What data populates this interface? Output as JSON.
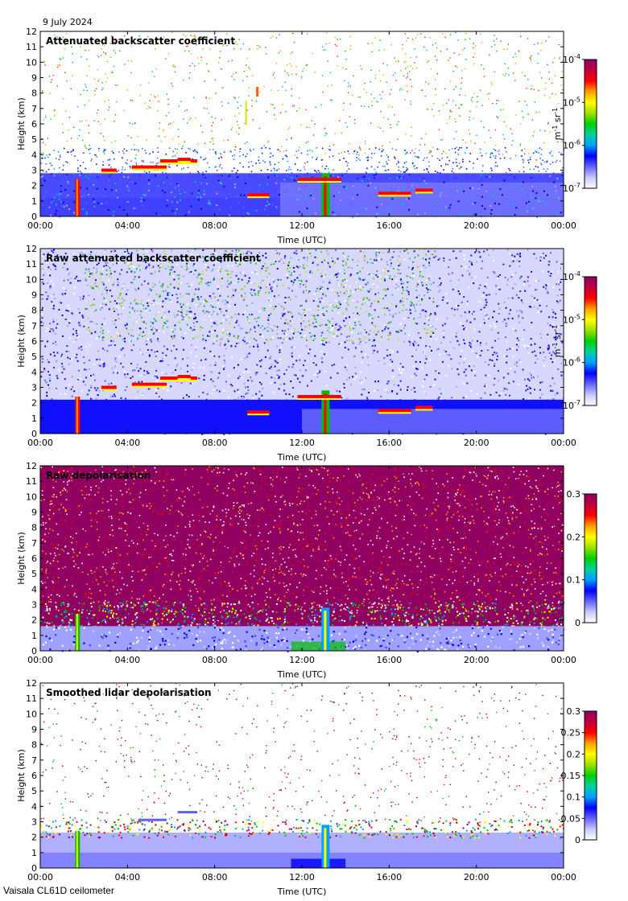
{
  "date_label": "9 July 2024",
  "instrument_label": "Vaisala CL61D ceilometer",
  "colors": {
    "colormap": [
      "#ffffff",
      "#c8c8ff",
      "#6464ff",
      "#0000ff",
      "#00a0ff",
      "#00d0a0",
      "#00d000",
      "#a0e000",
      "#ffff00",
      "#ffa000",
      "#ff0000",
      "#c00040",
      "#900060"
    ]
  },
  "chart_data": [
    {
      "type": "heatmap",
      "title": "Attenuated backscatter coefficient",
      "xlabel": "Time (UTC)",
      "ylabel": "Height (km)",
      "xlim": [
        0,
        24
      ],
      "ylim": [
        0,
        12
      ],
      "x_ticks": [
        "00:00",
        "04:00",
        "08:00",
        "12:00",
        "16:00",
        "20:00",
        "00:00"
      ],
      "y_ticks": [
        "0",
        "1",
        "2",
        "3",
        "4",
        "5",
        "6",
        "7",
        "8",
        "9",
        "10",
        "11",
        "12"
      ],
      "colorbar": {
        "scale": "log",
        "ticks": [
          {
            "base": "10",
            "exp": "-4"
          },
          {
            "base": "10",
            "exp": "-5"
          },
          {
            "base": "10",
            "exp": "-6"
          },
          {
            "base": "10",
            "exp": "-7"
          }
        ],
        "label": {
          "base": "m",
          "exp1": "-1",
          "mid": " sr",
          "exp2": "-1"
        }
      }
    },
    {
      "type": "heatmap",
      "title": "Raw attenuated backscatter coefficient",
      "xlabel": "Time (UTC)",
      "ylabel": "Height (km)",
      "xlim": [
        0,
        24
      ],
      "ylim": [
        0,
        12
      ],
      "x_ticks": [
        "00:00",
        "04:00",
        "08:00",
        "12:00",
        "16:00",
        "20:00",
        "00:00"
      ],
      "y_ticks": [
        "0",
        "1",
        "2",
        "3",
        "4",
        "5",
        "6",
        "7",
        "8",
        "9",
        "10",
        "11",
        "12"
      ],
      "colorbar": {
        "scale": "log",
        "ticks": [
          {
            "base": "10",
            "exp": "-4"
          },
          {
            "base": "10",
            "exp": "-5"
          },
          {
            "base": "10",
            "exp": "-6"
          },
          {
            "base": "10",
            "exp": "-7"
          }
        ],
        "label": {
          "base": "m",
          "exp1": "-1",
          "mid": " sr",
          "exp2": "-1"
        }
      }
    },
    {
      "type": "heatmap",
      "title": "Raw depolarisation",
      "xlabel": "Time (UTC)",
      "ylabel": "Height (km)",
      "xlim": [
        0,
        24
      ],
      "ylim": [
        0,
        12
      ],
      "x_ticks": [
        "00:00",
        "04:00",
        "08:00",
        "12:00",
        "16:00",
        "20:00",
        "00:00"
      ],
      "y_ticks": [
        "0",
        "1",
        "2",
        "3",
        "4",
        "5",
        "6",
        "7",
        "8",
        "9",
        "10",
        "11",
        "12"
      ],
      "colorbar": {
        "scale": "linear",
        "range": [
          0,
          0.3
        ],
        "ticks": [
          "0.3",
          "0.2",
          "0.1",
          "0"
        ]
      }
    },
    {
      "type": "heatmap",
      "title": "Smoothed lidar depolarisation",
      "xlabel": "Time (UTC)",
      "ylabel": "Height (km)",
      "xlim": [
        0,
        24
      ],
      "ylim": [
        0,
        12
      ],
      "x_ticks": [
        "00:00",
        "04:00",
        "08:00",
        "12:00",
        "16:00",
        "20:00",
        "00:00"
      ],
      "y_ticks": [
        "0",
        "1",
        "2",
        "3",
        "4",
        "5",
        "6",
        "7",
        "8",
        "9",
        "10",
        "11",
        "12"
      ],
      "colorbar": {
        "scale": "linear",
        "range": [
          0,
          0.3
        ],
        "ticks": [
          "0.3",
          "0.25",
          "0.2",
          "0.15",
          "0.1",
          "0.05",
          "0"
        ]
      }
    }
  ]
}
